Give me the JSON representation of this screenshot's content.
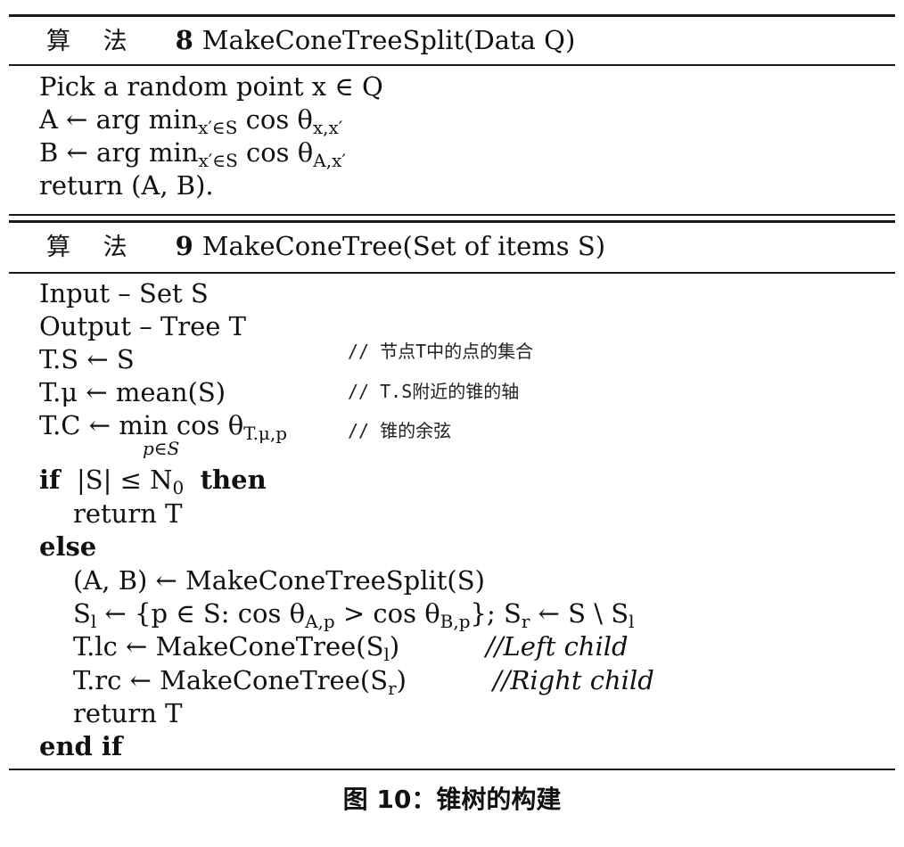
{
  "algo8": {
    "label": "算 法",
    "number": "8",
    "title": "MakeConeTreeSplit(Data Q)",
    "lines": [
      "Pick a random point x ∈ Q",
      "A ← arg min",
      "B ← arg min",
      "return (A, B)."
    ],
    "line2_sub": "x′∈S",
    "line2_rest": "cos θ",
    "line2_theta_sub": "x,x′",
    "line3_sub": "x′∈S",
    "line3_rest": "cos θ",
    "line3_theta_sub": "A,x′"
  },
  "algo9": {
    "label": "算 法",
    "number": "9",
    "title": "MakeConeTree(Set of items S)",
    "input": "Input – Set S",
    "output": "Output – Tree T",
    "ts": "T.S ← S",
    "tmu": "T.μ ← mean(S)",
    "tc_pre": "T.C ← ",
    "tc_min": "min",
    "tc_under": "p∈S",
    "tc_post": " cos θ",
    "tc_sub": "T.μ,p",
    "comment_ts": "// 节点T中的点的集合",
    "comment_tmu": "// T.S附近的锥的轴",
    "comment_tc": "// 锥的余弦",
    "if_kw": "if",
    "if_cond": "|S| ≤ N",
    "if_cond_sub": "0",
    "then_kw": "then",
    "return1": "return T",
    "else_kw": "else",
    "split": "(A, B) ← MakeConeTreeSplit(S)",
    "sl_pre": "S",
    "sl_pre_sub": "l",
    "sl_mid": " ← {p ∈ S:  cos θ",
    "sl_t1_sub": "A,p",
    "sl_mid2": " > cos θ",
    "sl_t2_sub": "B,p",
    "sl_mid3": "}; S",
    "sr_sub": "r",
    "sl_end": " ← S \\ S",
    "sl_end_sub": "l",
    "lc_pre": "T.lc ← MakeConeTree(S",
    "lc_sub": "l",
    "lc_post": ")",
    "lc_comment": "//Left child",
    "rc_pre": "T.rc ← MakeConeTree(S",
    "rc_sub": "r",
    "rc_post": ")",
    "rc_comment": "//Right child",
    "return2": "return T",
    "endif_kw": "end if"
  },
  "caption": "图 10：锥树的构建"
}
